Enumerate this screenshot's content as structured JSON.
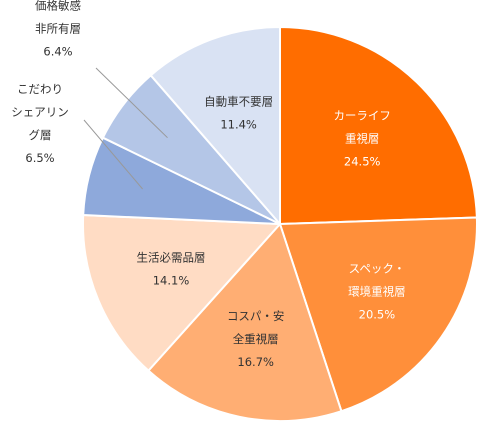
{
  "chart_data": {
    "type": "pie",
    "title": "",
    "slices": [
      {
        "lines": [
          "カーライフ",
          "重視層"
        ],
        "percent_label": "24.5%",
        "value": 24.5,
        "color": "#FF6D00",
        "text_color": "#ffffff",
        "label_inside": true
      },
      {
        "lines": [
          "スペック・",
          "環境重視層"
        ],
        "percent_label": "20.5%",
        "value": 20.5,
        "color": "#FF8F3A",
        "text_color": "#ffffff",
        "label_inside": true
      },
      {
        "lines": [
          "コスパ・安",
          "全重視層"
        ],
        "percent_label": "16.7%",
        "value": 16.7,
        "color": "#FFAE73",
        "text_color": "#333333",
        "label_inside": true
      },
      {
        "lines": [
          "生活必需品層"
        ],
        "percent_label": "14.1%",
        "value": 14.1,
        "color": "#FFDCC4",
        "text_color": "#333333",
        "label_inside": true
      },
      {
        "lines": [
          "こだわり",
          "シェアリン",
          "グ層"
        ],
        "percent_label": "6.5%",
        "value": 6.5,
        "color": "#8EA9DB",
        "text_color": "#333333",
        "label_inside": false
      },
      {
        "lines": [
          "価格敏感",
          "非所有層"
        ],
        "percent_label": "6.4%",
        "value": 6.4,
        "color": "#B4C6E7",
        "text_color": "#333333",
        "label_inside": false
      },
      {
        "lines": [
          "自動車不要層"
        ],
        "percent_label": "11.4%",
        "value": 11.4,
        "color": "#D9E2F3",
        "text_color": "#333333",
        "label_inside": true
      }
    ]
  }
}
